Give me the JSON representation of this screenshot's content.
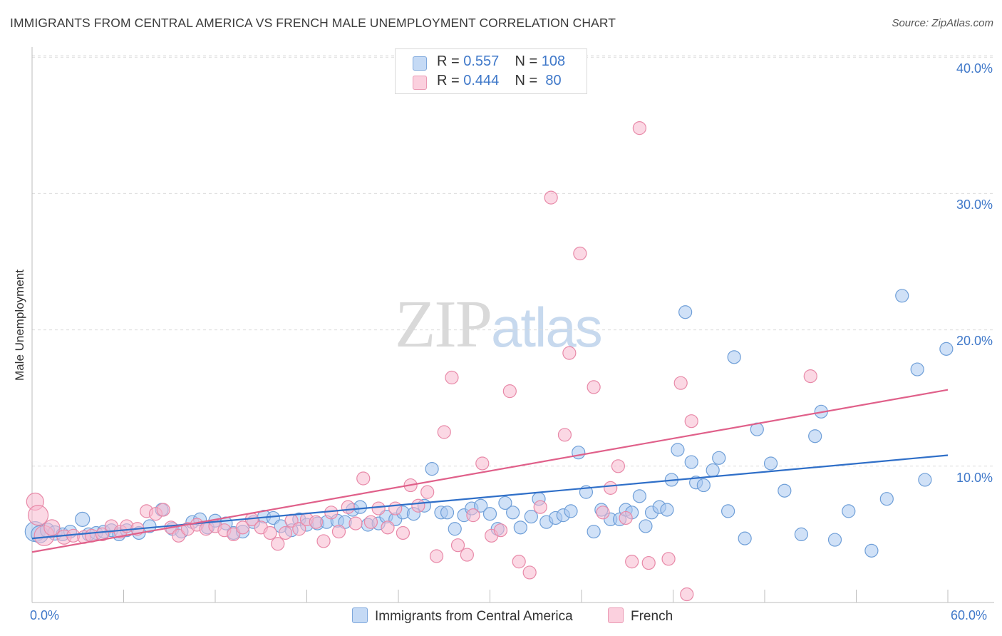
{
  "title": "IMMIGRANTS FROM CENTRAL AMERICA VS FRENCH MALE UNEMPLOYMENT CORRELATION CHART",
  "source": "Source: ZipAtlas.com",
  "watermark": {
    "zip": "ZIP",
    "atlas": "atlas"
  },
  "legend": {
    "rows": [
      {
        "r_label": "R =",
        "r_value": "0.557",
        "n_label": "N =",
        "n_value": "108"
      },
      {
        "r_label": "R =",
        "r_value": "0.444",
        "n_label": "N =",
        "n_value": " 80"
      }
    ]
  },
  "bottom_legend": {
    "series1": "Immigrants from Central America",
    "series2": "French"
  },
  "colors": {
    "blue_fill": "#aac8f0",
    "blue_stroke": "#6f9fd8",
    "blue_line": "#2f6fc8",
    "pink_fill": "#f7b8cd",
    "pink_stroke": "#e889a8",
    "pink_line": "#e0608a",
    "tick_text": "#3f78c9"
  },
  "chart_data": {
    "type": "scatter",
    "title": "IMMIGRANTS FROM CENTRAL AMERICA VS FRENCH MALE UNEMPLOYMENT CORRELATION CHART",
    "xlabel": "",
    "ylabel": "Male Unemployment",
    "xlim": [
      0,
      60
    ],
    "ylim": [
      0,
      42
    ],
    "x_tick_labels": [
      "0.0%",
      "60.0%"
    ],
    "y_ticks": [
      10,
      20,
      30,
      40
    ],
    "y_tick_labels": [
      "10.0%",
      "20.0%",
      "30.0%",
      "40.0%"
    ],
    "grid": true,
    "legend_position": "top-center",
    "series": [
      {
        "name": "Immigrants from Central America",
        "r": 0.557,
        "n": 108,
        "trend": {
          "x": [
            0,
            60
          ],
          "y": [
            4.7,
            10.8
          ]
        },
        "points": [
          [
            0.2,
            5.2,
            14
          ],
          [
            0.5,
            5.0,
            12
          ],
          [
            1.0,
            5.3,
            10
          ],
          [
            1.5,
            5.1,
            10
          ],
          [
            2.0,
            5.0,
            9
          ],
          [
            2.5,
            5.2,
            9
          ],
          [
            3.3,
            6.1,
            10
          ],
          [
            3.7,
            5.0,
            9
          ],
          [
            4.2,
            5.1,
            9
          ],
          [
            4.7,
            5.2,
            9
          ],
          [
            5.2,
            5.3,
            9
          ],
          [
            5.7,
            5.0,
            9
          ],
          [
            6.2,
            5.3,
            9
          ],
          [
            7.0,
            5.1,
            9
          ],
          [
            7.7,
            5.6,
            9
          ],
          [
            8.5,
            6.8,
            9
          ],
          [
            9.2,
            5.4,
            9
          ],
          [
            9.8,
            5.2,
            9
          ],
          [
            10.5,
            5.9,
            9
          ],
          [
            11.0,
            6.1,
            9
          ],
          [
            11.5,
            5.5,
            9
          ],
          [
            12.0,
            6.0,
            9
          ],
          [
            12.7,
            5.8,
            9
          ],
          [
            13.2,
            5.1,
            9
          ],
          [
            13.8,
            5.2,
            9
          ],
          [
            14.5,
            5.9,
            9
          ],
          [
            15.2,
            6.3,
            9
          ],
          [
            15.8,
            6.2,
            9
          ],
          [
            16.3,
            5.6,
            9
          ],
          [
            17.0,
            5.3,
            9
          ],
          [
            17.5,
            6.1,
            9
          ],
          [
            18.0,
            5.7,
            9
          ],
          [
            18.7,
            5.8,
            9
          ],
          [
            19.3,
            5.9,
            9
          ],
          [
            20.0,
            6.0,
            9
          ],
          [
            20.5,
            5.9,
            9
          ],
          [
            21.0,
            6.8,
            9
          ],
          [
            21.5,
            7.0,
            9
          ],
          [
            22.0,
            5.7,
            9
          ],
          [
            22.7,
            5.8,
            9
          ],
          [
            23.2,
            6.3,
            9
          ],
          [
            23.8,
            6.1,
            9
          ],
          [
            24.3,
            6.6,
            9
          ],
          [
            25.0,
            6.5,
            9
          ],
          [
            25.7,
            7.1,
            9
          ],
          [
            26.2,
            9.8,
            9
          ],
          [
            26.8,
            6.6,
            9
          ],
          [
            27.2,
            6.6,
            9
          ],
          [
            27.7,
            5.4,
            9
          ],
          [
            28.3,
            6.4,
            9
          ],
          [
            28.8,
            6.9,
            9
          ],
          [
            29.4,
            7.1,
            9
          ],
          [
            30.0,
            6.5,
            9
          ],
          [
            30.5,
            5.4,
            9
          ],
          [
            31.0,
            7.3,
            9
          ],
          [
            31.5,
            6.6,
            9
          ],
          [
            32.0,
            5.5,
            9
          ],
          [
            32.7,
            6.3,
            9
          ],
          [
            33.2,
            7.6,
            9
          ],
          [
            33.7,
            5.9,
            9
          ],
          [
            34.3,
            6.2,
            9
          ],
          [
            34.8,
            6.4,
            9
          ],
          [
            35.3,
            6.7,
            9
          ],
          [
            35.8,
            11.0,
            9
          ],
          [
            36.3,
            8.1,
            9
          ],
          [
            36.8,
            5.2,
            9
          ],
          [
            37.3,
            6.8,
            9
          ],
          [
            37.9,
            6.1,
            9
          ],
          [
            38.5,
            6.1,
            9
          ],
          [
            38.9,
            6.8,
            9
          ],
          [
            39.3,
            6.6,
            9
          ],
          [
            39.8,
            7.8,
            9
          ],
          [
            40.2,
            5.6,
            9
          ],
          [
            40.6,
            6.6,
            9
          ],
          [
            41.1,
            7.0,
            9
          ],
          [
            41.6,
            6.8,
            9
          ],
          [
            41.9,
            9.0,
            9
          ],
          [
            42.3,
            11.2,
            9
          ],
          [
            42.8,
            21.3,
            9
          ],
          [
            43.2,
            10.3,
            9
          ],
          [
            43.5,
            8.8,
            9
          ],
          [
            44.0,
            8.6,
            9
          ],
          [
            44.6,
            9.7,
            9
          ],
          [
            45.0,
            10.6,
            9
          ],
          [
            45.6,
            6.7,
            9
          ],
          [
            46.7,
            4.7,
            9
          ],
          [
            46.0,
            18.0,
            9
          ],
          [
            47.5,
            12.7,
            9
          ],
          [
            48.4,
            10.2,
            9
          ],
          [
            49.3,
            8.2,
            9
          ],
          [
            50.4,
            5.0,
            9
          ],
          [
            51.3,
            12.2,
            9
          ],
          [
            51.7,
            14.0,
            9
          ],
          [
            52.6,
            4.6,
            9
          ],
          [
            53.5,
            6.7,
            9
          ],
          [
            55.0,
            3.8,
            9
          ],
          [
            56.0,
            7.6,
            9
          ],
          [
            57.0,
            22.5,
            9
          ],
          [
            58.0,
            17.1,
            9
          ],
          [
            58.5,
            9.0,
            9
          ],
          [
            59.9,
            18.6,
            9
          ]
        ]
      },
      {
        "name": "French",
        "r": 0.444,
        "n": 80,
        "trend": {
          "x": [
            0,
            60
          ],
          "y": [
            3.7,
            15.6
          ]
        },
        "points": [
          [
            0.2,
            7.4,
            12
          ],
          [
            0.4,
            6.4,
            14
          ],
          [
            0.8,
            4.9,
            14
          ],
          [
            1.3,
            5.5,
            11
          ],
          [
            2.1,
            4.8,
            10
          ],
          [
            2.7,
            4.9,
            9
          ],
          [
            3.4,
            4.8,
            9
          ],
          [
            3.9,
            4.9,
            9
          ],
          [
            4.6,
            5.0,
            9
          ],
          [
            5.2,
            5.6,
            9
          ],
          [
            5.8,
            5.2,
            9
          ],
          [
            6.2,
            5.6,
            9
          ],
          [
            6.9,
            5.4,
            9
          ],
          [
            7.5,
            6.7,
            9
          ],
          [
            8.1,
            6.5,
            9
          ],
          [
            8.6,
            6.8,
            9
          ],
          [
            9.1,
            5.5,
            9
          ],
          [
            9.6,
            4.9,
            9
          ],
          [
            10.2,
            5.4,
            9
          ],
          [
            10.8,
            5.7,
            9
          ],
          [
            11.4,
            5.4,
            9
          ],
          [
            12.0,
            5.6,
            9
          ],
          [
            12.6,
            5.3,
            9
          ],
          [
            13.2,
            5.0,
            9
          ],
          [
            13.8,
            5.5,
            9
          ],
          [
            14.4,
            6.1,
            9
          ],
          [
            15.0,
            5.5,
            9
          ],
          [
            15.6,
            5.1,
            9
          ],
          [
            16.1,
            4.3,
            9
          ],
          [
            16.6,
            5.1,
            9
          ],
          [
            17.0,
            6.0,
            9
          ],
          [
            17.5,
            5.4,
            9
          ],
          [
            18.0,
            6.1,
            9
          ],
          [
            18.6,
            5.9,
            9
          ],
          [
            19.1,
            4.5,
            9
          ],
          [
            19.6,
            6.6,
            9
          ],
          [
            20.1,
            5.2,
            9
          ],
          [
            20.7,
            7.0,
            9
          ],
          [
            21.2,
            5.8,
            9
          ],
          [
            21.7,
            9.1,
            9
          ],
          [
            22.2,
            5.9,
            9
          ],
          [
            22.7,
            6.9,
            9
          ],
          [
            23.3,
            5.5,
            9
          ],
          [
            23.8,
            6.9,
            9
          ],
          [
            24.3,
            5.1,
            9
          ],
          [
            24.8,
            8.6,
            9
          ],
          [
            25.3,
            7.1,
            9
          ],
          [
            25.9,
            8.1,
            9
          ],
          [
            26.5,
            3.4,
            9
          ],
          [
            27.0,
            12.5,
            9
          ],
          [
            27.5,
            16.5,
            9
          ],
          [
            27.9,
            4.2,
            9
          ],
          [
            28.5,
            3.5,
            9
          ],
          [
            28.9,
            6.4,
            9
          ],
          [
            29.5,
            10.2,
            9
          ],
          [
            30.1,
            4.9,
            9
          ],
          [
            30.7,
            5.3,
            9
          ],
          [
            31.3,
            15.5,
            9
          ],
          [
            31.9,
            3.0,
            9
          ],
          [
            32.6,
            2.2,
            9
          ],
          [
            33.3,
            7.0,
            9
          ],
          [
            34.0,
            29.7,
            9
          ],
          [
            34.9,
            12.3,
            9
          ],
          [
            35.2,
            18.3,
            9
          ],
          [
            35.9,
            25.6,
            9
          ],
          [
            36.8,
            15.8,
            9
          ],
          [
            37.4,
            6.6,
            9
          ],
          [
            37.9,
            8.4,
            9
          ],
          [
            38.4,
            10.0,
            9
          ],
          [
            38.9,
            6.2,
            9
          ],
          [
            39.3,
            3.0,
            9
          ],
          [
            39.8,
            34.8,
            9
          ],
          [
            40.4,
            2.9,
            9
          ],
          [
            41.7,
            3.2,
            9
          ],
          [
            42.5,
            16.1,
            9
          ],
          [
            43.2,
            13.3,
            9
          ],
          [
            42.9,
            0.6,
            9
          ],
          [
            51.0,
            16.6,
            9
          ]
        ]
      }
    ]
  }
}
